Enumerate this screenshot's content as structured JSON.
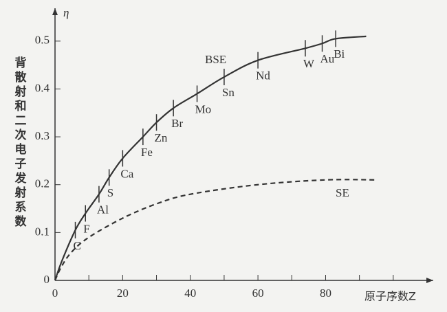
{
  "chart_data": {
    "type": "line",
    "y_label": "背散射和二次电子发射系数",
    "y_symbol": "η",
    "x_label": "原子序数Z",
    "xlim": [
      0,
      110
    ],
    "xticks": [
      0,
      20,
      40,
      60,
      80
    ],
    "x_minor_ticks": [
      10,
      30,
      50,
      70,
      90,
      100
    ],
    "ylim": [
      0,
      0.55
    ],
    "yticks": [
      0,
      0.1,
      0.2,
      0.3,
      0.4,
      0.5
    ],
    "series": [
      {
        "name": "BSE",
        "color": "#333333",
        "dashed": false,
        "x": [
          0,
          2,
          6,
          9,
          13,
          16,
          20,
          26,
          30,
          35,
          42,
          50,
          60,
          74,
          79,
          83,
          92
        ],
        "values": [
          0,
          0.04,
          0.105,
          0.14,
          0.18,
          0.215,
          0.255,
          0.3,
          0.33,
          0.36,
          0.39,
          0.425,
          0.46,
          0.485,
          0.495,
          0.505,
          0.51
        ]
      },
      {
        "name": "SE",
        "color": "#333333",
        "dashed": true,
        "x": [
          0,
          2,
          5,
          10,
          20,
          30,
          40,
          60,
          80,
          95
        ],
        "values": [
          0,
          0.03,
          0.06,
          0.09,
          0.13,
          0.16,
          0.18,
          0.2,
          0.21,
          0.21
        ]
      }
    ],
    "elements": [
      {
        "label": "C",
        "z": 6,
        "eta": 0.105
      },
      {
        "label": "F",
        "z": 9,
        "eta": 0.14
      },
      {
        "label": "Al",
        "z": 13,
        "eta": 0.18
      },
      {
        "label": "S",
        "z": 16,
        "eta": 0.215
      },
      {
        "label": "Ca",
        "z": 20,
        "eta": 0.255
      },
      {
        "label": "Fe",
        "z": 26,
        "eta": 0.3
      },
      {
        "label": "Zn",
        "z": 30,
        "eta": 0.33
      },
      {
        "label": "Br",
        "z": 35,
        "eta": 0.36
      },
      {
        "label": "Mo",
        "z": 42,
        "eta": 0.39
      },
      {
        "label": "Sn",
        "z": 50,
        "eta": 0.425
      },
      {
        "label": "Nd",
        "z": 60,
        "eta": 0.46
      },
      {
        "label": "W",
        "z": 74,
        "eta": 0.485
      },
      {
        "label": "Au",
        "z": 79,
        "eta": 0.495
      },
      {
        "label": "Bi",
        "z": 83,
        "eta": 0.505
      }
    ]
  }
}
